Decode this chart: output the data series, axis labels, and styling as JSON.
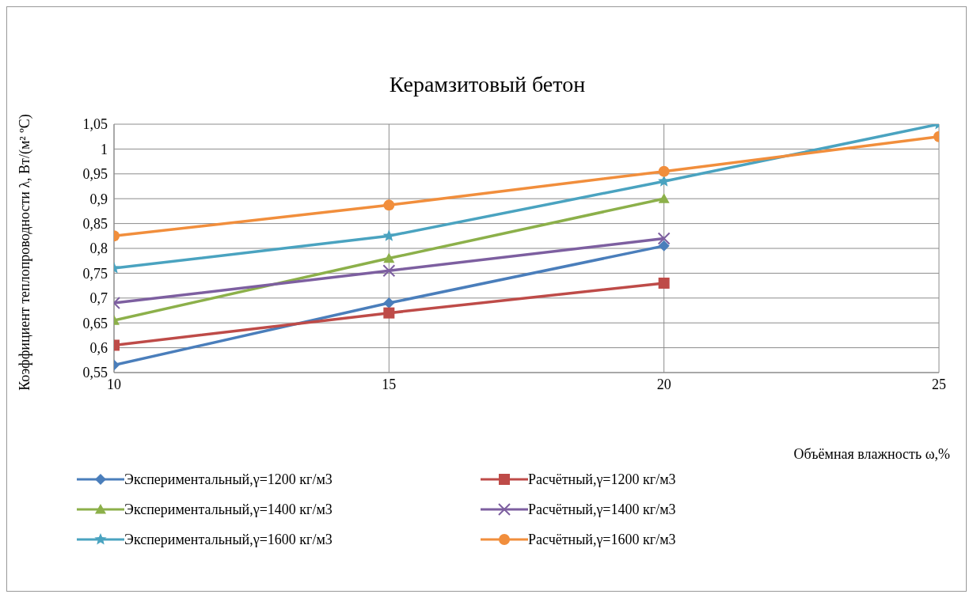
{
  "chart_data": {
    "type": "line",
    "title": "Керамзитовый бетон",
    "xlabel": "Объёмная влажность ω,%",
    "ylabel": "Коэффициент теплопроводности λ, Вт/(м² ºС)",
    "xlim": [
      10,
      25
    ],
    "xticks": [
      10,
      15,
      20,
      25
    ],
    "ylim": [
      0.55,
      1.05
    ],
    "yticks": [
      {
        "value": 0.55,
        "label": "0,55"
      },
      {
        "value": 0.6,
        "label": "0,6"
      },
      {
        "value": 0.65,
        "label": "0,65"
      },
      {
        "value": 0.7,
        "label": "0,7"
      },
      {
        "value": 0.75,
        "label": "0,75"
      },
      {
        "value": 0.8,
        "label": "0,8"
      },
      {
        "value": 0.85,
        "label": "0,85"
      },
      {
        "value": 0.9,
        "label": "0,9"
      },
      {
        "value": 0.95,
        "label": "0,95"
      },
      {
        "value": 1,
        "label": "1"
      },
      {
        "value": 1.05,
        "label": "1,05"
      }
    ],
    "grid": true,
    "legend": "bottom",
    "line_style": "solid",
    "series": [
      {
        "name": "Экспериментальный,γ=1200 кг/м3",
        "color": "#4a7ebb",
        "marker": "diamond",
        "x": [
          10,
          15,
          20
        ],
        "values": [
          0.565,
          0.69,
          0.805
        ]
      },
      {
        "name": "Расчётный,γ=1200 кг/м3",
        "color": "#be4b48",
        "marker": "square",
        "x": [
          10,
          15,
          20
        ],
        "values": [
          0.605,
          0.67,
          0.73
        ]
      },
      {
        "name": "Экспериментальный,γ=1400 кг/м3",
        "color": "#8cb04a",
        "marker": "triangle",
        "x": [
          10,
          15,
          20
        ],
        "values": [
          0.655,
          0.78,
          0.9
        ]
      },
      {
        "name": "Расчётный,γ=1400 кг/м3",
        "color": "#7d5fa0",
        "marker": "cross",
        "x": [
          10,
          15,
          20
        ],
        "values": [
          0.69,
          0.755,
          0.82
        ]
      },
      {
        "name": "Экспериментальный,γ=1600 кг/м3",
        "color": "#4aa3c0",
        "marker": "star",
        "x": [
          10,
          15,
          20,
          25
        ],
        "values": [
          0.76,
          0.825,
          0.935,
          1.05
        ]
      },
      {
        "name": "Расчётный,γ=1600 кг/м3",
        "color": "#f18e3c",
        "marker": "circle",
        "x": [
          10,
          15,
          20,
          25
        ],
        "values": [
          0.825,
          0.887,
          0.955,
          1.025
        ]
      }
    ]
  }
}
